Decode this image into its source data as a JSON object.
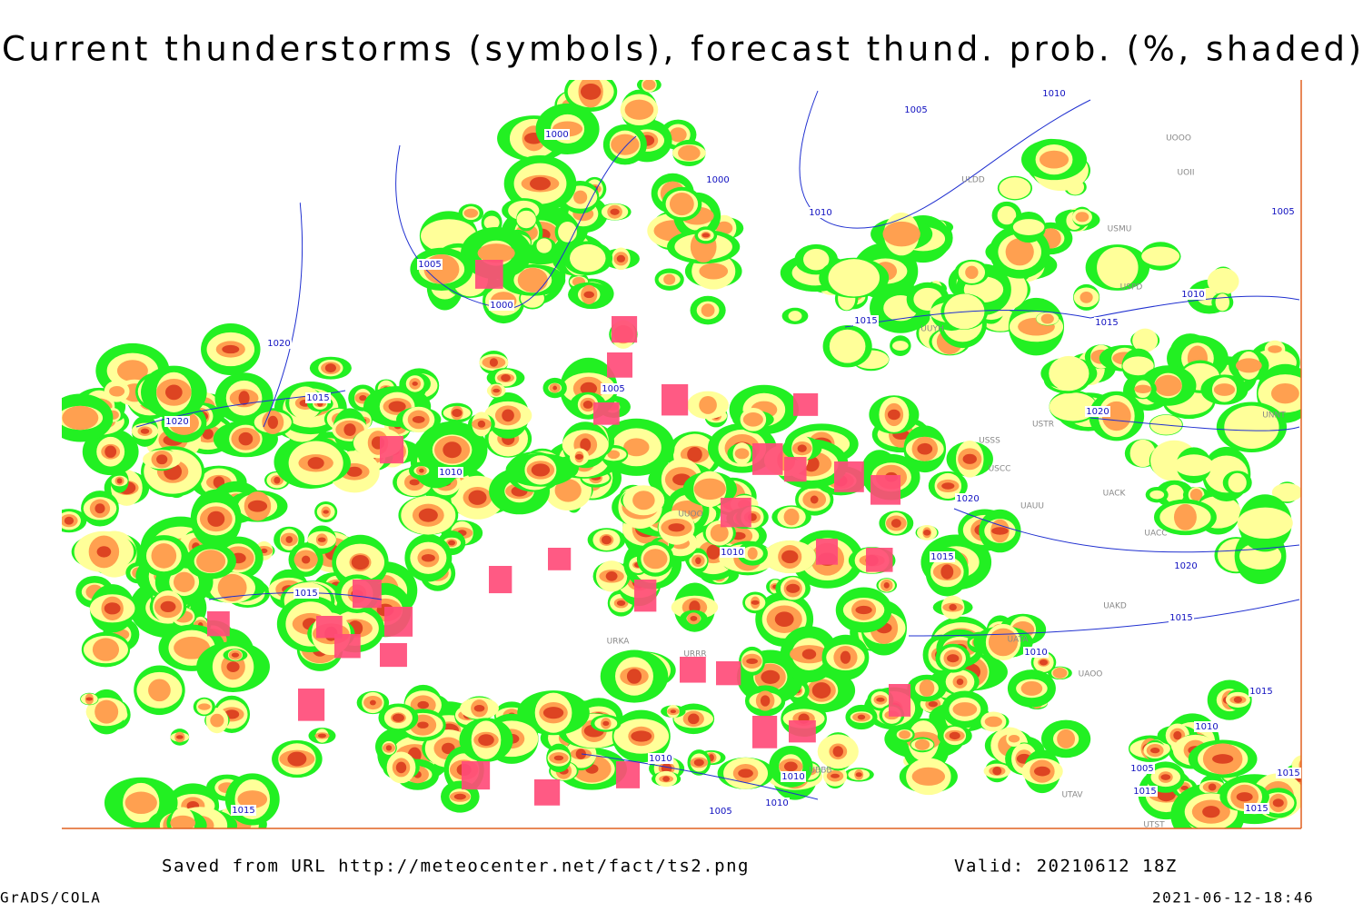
{
  "header": {
    "title": "Current thunderstorms (symbols), forecast thund. prob. (%, shaded)"
  },
  "map": {
    "isobar_labels": [
      "1005",
      "1000",
      "1000",
      "1000",
      "1005",
      "1010",
      "1010",
      "1015",
      "1005",
      "1020",
      "1015",
      "1020",
      "1010",
      "1015",
      "1010",
      "1015",
      "1020",
      "1020",
      "1015",
      "1010",
      "1010",
      "1010",
      "1010",
      "1005",
      "1015",
      "1015",
      "1010",
      "1005",
      "1020",
      "1015",
      "1010",
      "1005",
      "1015",
      "1015",
      "1015"
    ],
    "station_labels": [
      "ULDD",
      "USMU",
      "UOOO",
      "UOII",
      "USPD",
      "UUYH",
      "USSS",
      "USTR",
      "USCC",
      "UAUU",
      "UACK",
      "UACC",
      "UAKD",
      "UATA",
      "UAOO",
      "UNNT",
      "UTAV",
      "UUOO",
      "URKA",
      "URRR",
      "UBBB",
      "UTST"
    ]
  },
  "footer": {
    "source": "Saved from URL http://meteocenter.net/fact/ts2.png",
    "valid": "Valid: 20210612 18Z",
    "software": "GrADS/COLA",
    "timestamp": "2021-06-12-18:46"
  }
}
